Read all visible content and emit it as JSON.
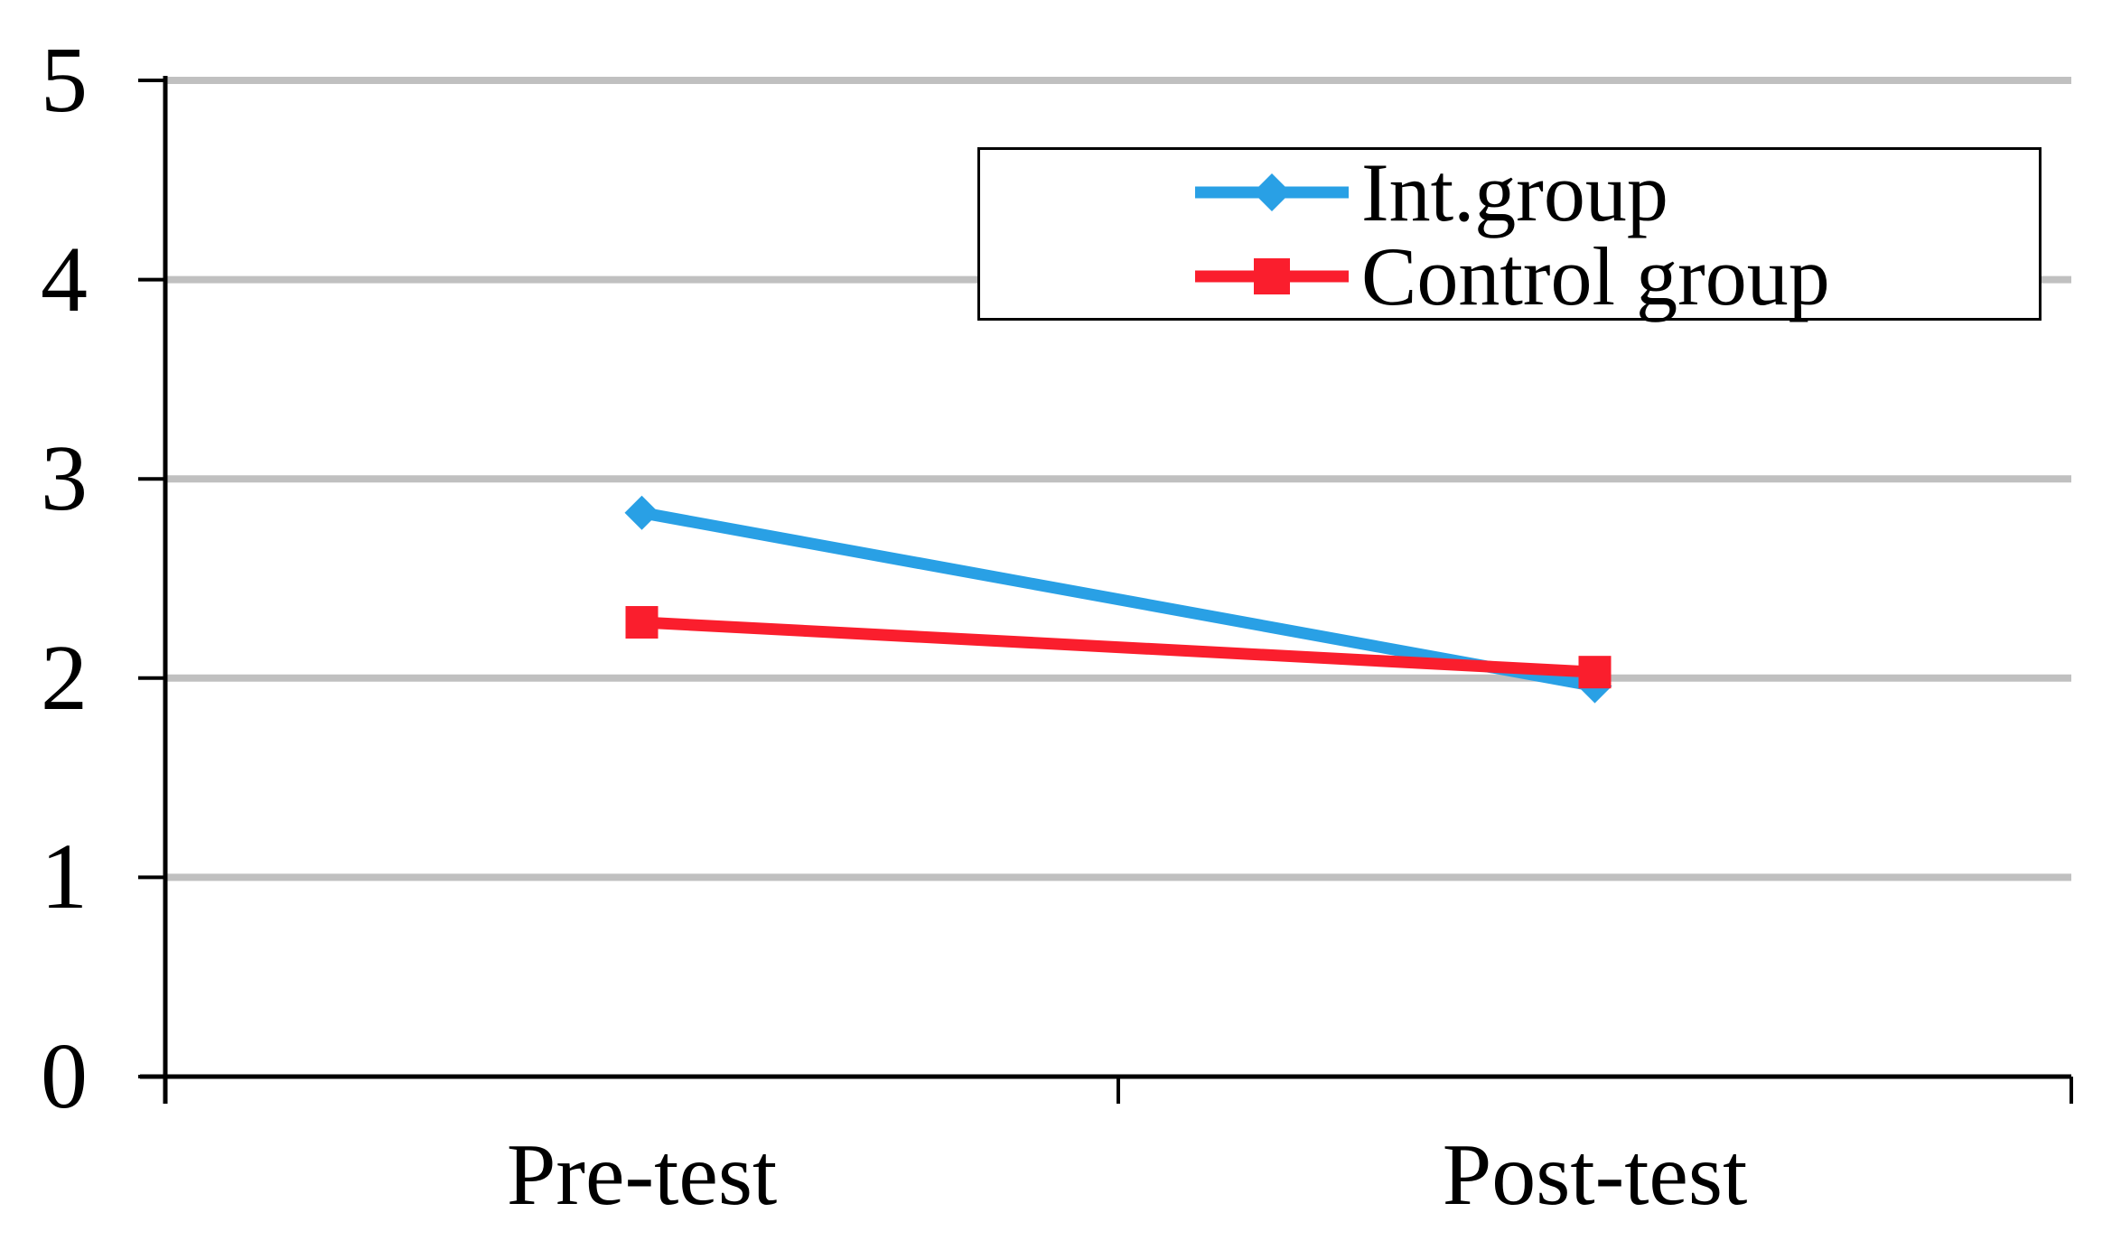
{
  "chart_data": {
    "type": "line",
    "categories": [
      "Pre-test",
      "Post-test"
    ],
    "series": [
      {
        "name": "Int.group",
        "values": [
          2.83,
          1.96
        ],
        "color": "#29A0E5",
        "marker": "diamond"
      },
      {
        "name": "Control group",
        "values": [
          2.28,
          2.03
        ],
        "color": "#FA1E2D",
        "marker": "square"
      }
    ],
    "ylim": [
      0,
      5
    ],
    "yticks": [
      0,
      1,
      2,
      3,
      4,
      5
    ],
    "grid": "horizontal",
    "gridline_color": "#C0C0C0",
    "axis_color": "#000000",
    "legend": {
      "position": "top-right",
      "border_color": "#000000",
      "background": "#ffffff"
    }
  }
}
